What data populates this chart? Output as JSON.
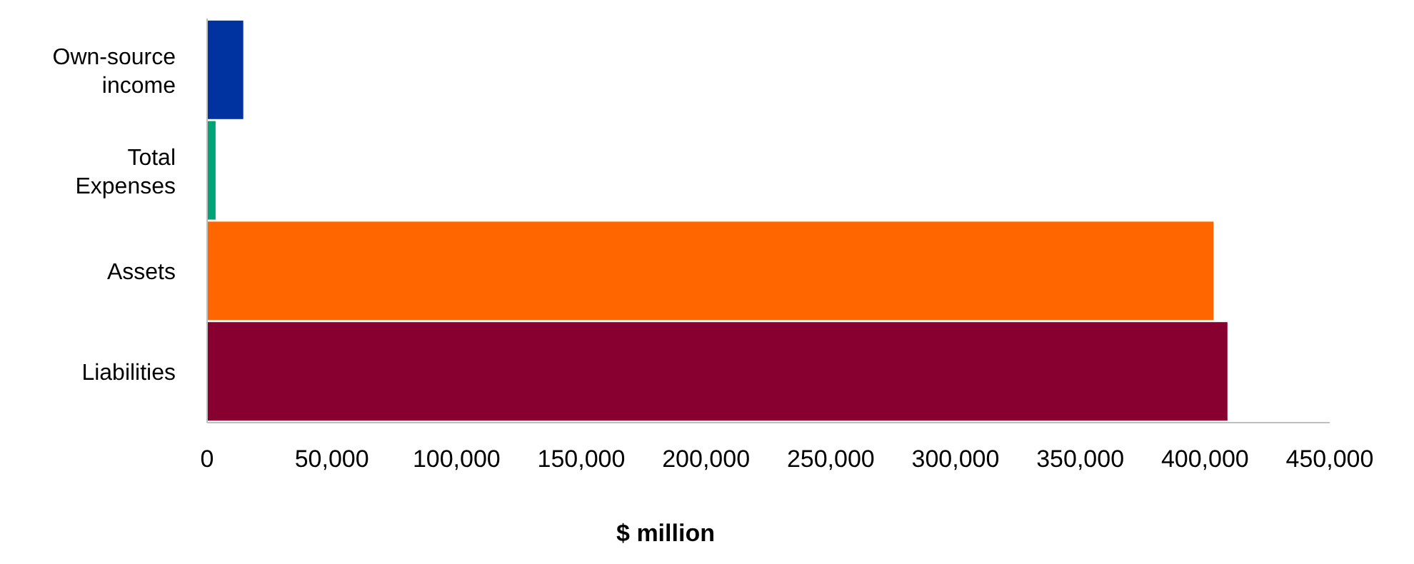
{
  "chart_data": {
    "type": "bar",
    "orientation": "horizontal",
    "categories": [
      "Own-source income",
      "Total Expenses",
      "Assets",
      "Liabilities"
    ],
    "values": [
      14500,
      3400,
      403400,
      409000
    ],
    "colors": [
      "#0033a0",
      "#00a375",
      "#ff6600",
      "#870030"
    ],
    "xlabel": "$ million",
    "xlim": [
      0,
      450000
    ],
    "xticks": [
      0,
      {
        "value": 50000,
        "label": "50,000"
      },
      {
        "value": 100000,
        "label": "100,000"
      },
      {
        "value": 150000,
        "label": "150,000"
      },
      {
        "value": 200000,
        "label": "200,000"
      },
      {
        "value": 250000,
        "label": "250,000"
      },
      {
        "value": 300000,
        "label": "300,000"
      },
      {
        "value": 350000,
        "label": "350,000"
      },
      {
        "value": 400000,
        "label": "400,000"
      },
      {
        "value": 450000,
        "label": "450,000"
      }
    ],
    "tick_labels": "x"
  }
}
